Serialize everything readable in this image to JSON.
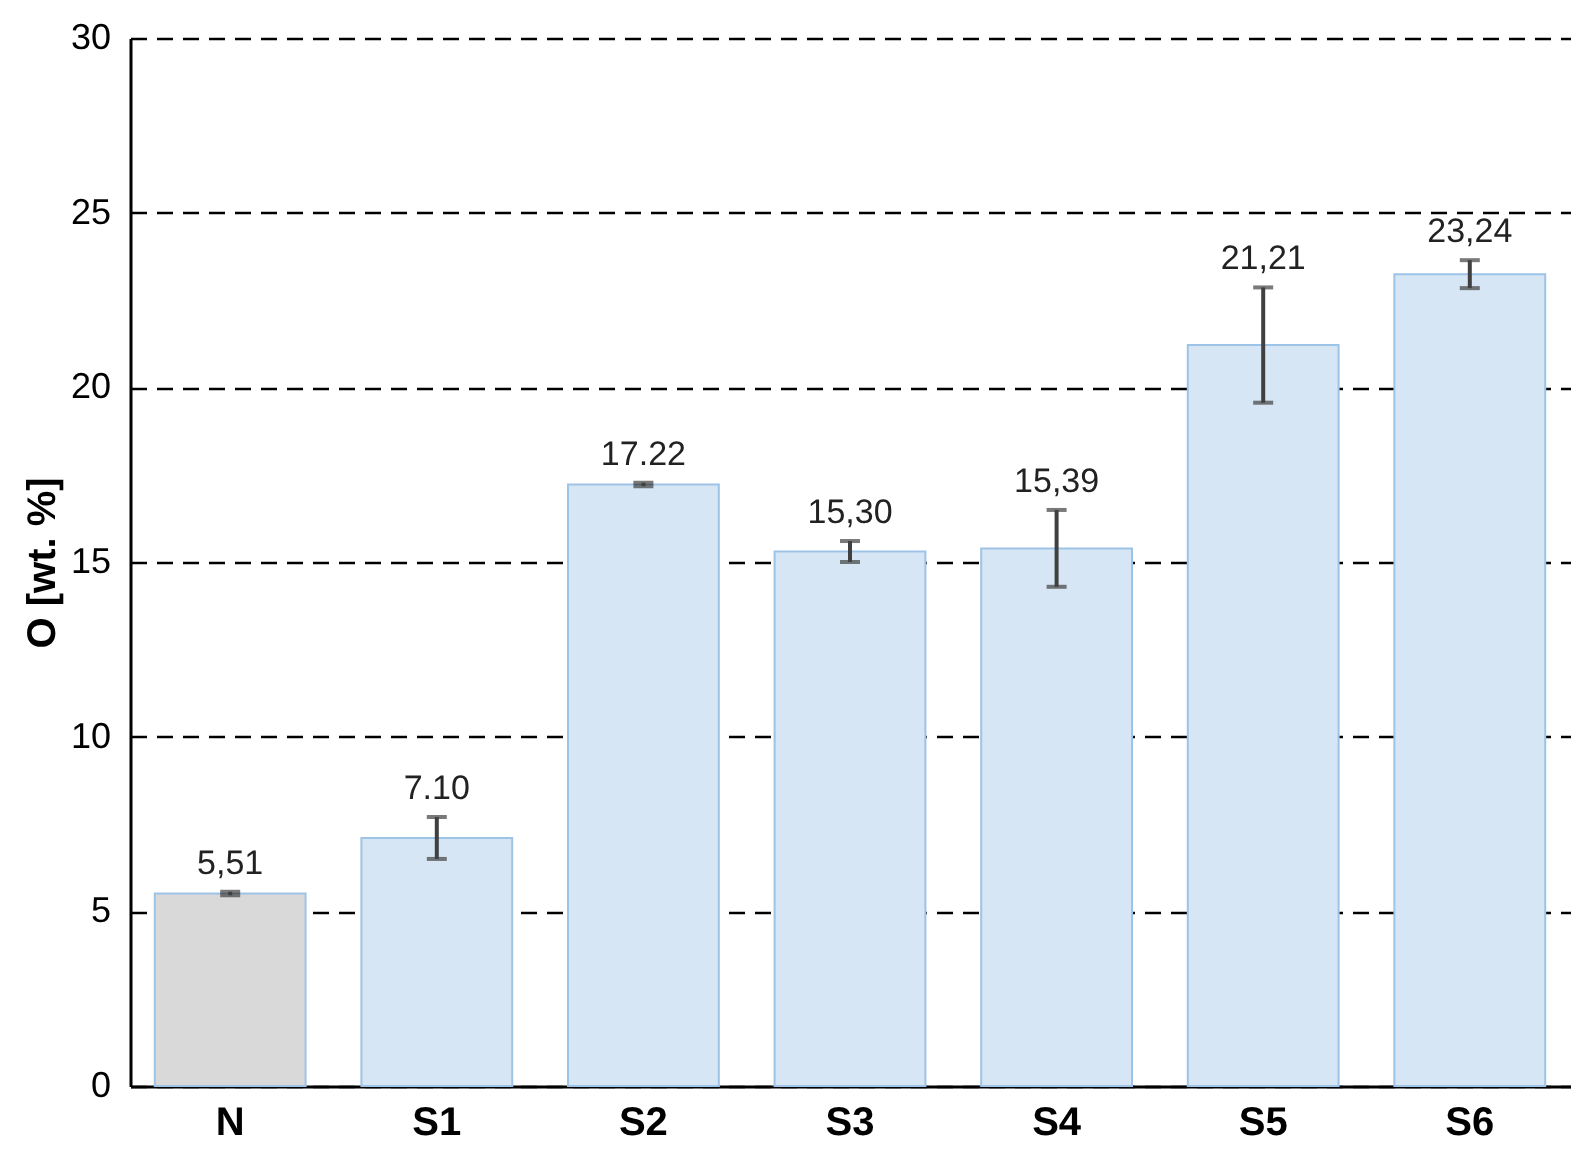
{
  "chart_data": {
    "type": "bar",
    "ylabel": "O [wt. %]",
    "categories": [
      "N",
      "S1",
      "S2",
      "S3",
      "S4",
      "S5",
      "S6"
    ],
    "values": [
      5.51,
      7.1,
      17.22,
      15.3,
      15.39,
      21.21,
      23.24
    ],
    "colors": [
      "#d9d9d9",
      "#d6e6f4",
      "#d6e6f4",
      "#d6e6f4",
      "#d6e6f4",
      "#d6e6f4",
      "#d6e6f4"
    ],
    "errors": [
      0.05,
      0.6,
      0.05,
      0.3,
      1.1,
      1.65,
      0.4
    ],
    "value_labels": [
      "5,51",
      "7.10",
      "17.22",
      "15,30",
      "15,39",
      "21,21",
      "23,24"
    ],
    "ylim": [
      0,
      30
    ],
    "yticks": [
      0,
      5,
      10,
      15,
      20,
      25,
      30
    ],
    "grid": "y"
  }
}
